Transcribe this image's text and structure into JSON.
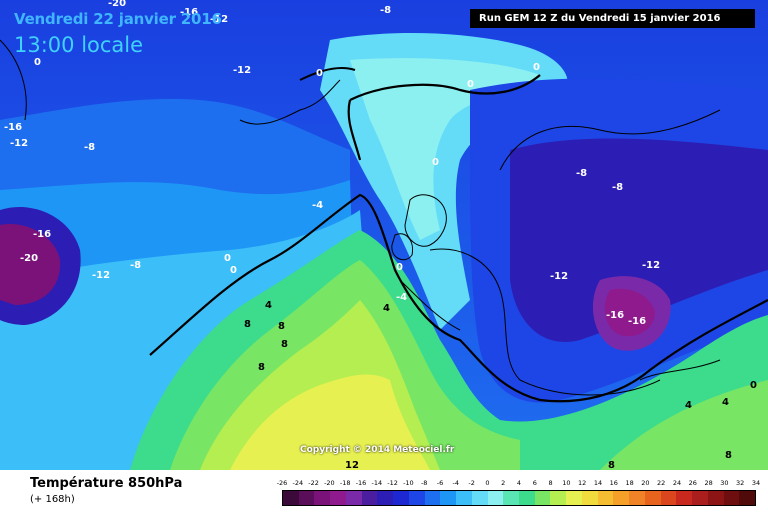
{
  "header": {
    "date": "Vendredi 22 janvier 2016",
    "time": "13:00 locale",
    "run": "Run GEM 12 Z du Vendredi 15 janvier 2016"
  },
  "map": {
    "copyright": "Copyright © 2014 Meteociel.fr",
    "labels": [
      "-20",
      "-16",
      "-12",
      "-8",
      "-12",
      "0",
      "0",
      "-16",
      "-12",
      "-8",
      "0",
      "0",
      "-8",
      "-8",
      "-4",
      "0",
      "-16",
      "-20",
      "-12",
      "-8",
      "0",
      "0",
      "-12",
      "-12",
      "0",
      "4",
      "4",
      "8",
      "8",
      "8",
      "-16",
      "-16",
      "8",
      "8",
      "12",
      "8",
      "4",
      "4",
      "0",
      "-4"
    ]
  },
  "legend": {
    "title": "Température 850hPa",
    "subtitle": "(+ 168h)",
    "scale": [
      "-26",
      "-24",
      "-22",
      "-20",
      "-18",
      "-16",
      "-14",
      "-12",
      "-10",
      "-8",
      "-6",
      "-4",
      "-2",
      "0",
      "2",
      "4",
      "6",
      "8",
      "10",
      "12",
      "14",
      "16",
      "18",
      "20",
      "22",
      "24",
      "26",
      "28",
      "30",
      "32",
      "34"
    ],
    "colors": [
      "#3b0a3b",
      "#5a0e5a",
      "#7a127a",
      "#8e1a8e",
      "#7a2aa8",
      "#4b1ea0",
      "#2c1eb4",
      "#1e28d2",
      "#1e46e6",
      "#1e6ef0",
      "#1e96f5",
      "#3cbef8",
      "#64dcf8",
      "#8cf0f0",
      "#5ae6b4",
      "#3cdc8c",
      "#78e664",
      "#b4ee50",
      "#e6f050",
      "#f0dc3c",
      "#f5be32",
      "#f5a028",
      "#f08228",
      "#e6641e",
      "#dc461e",
      "#c8281e",
      "#aa1e1e",
      "#8c1414",
      "#6e0e0e",
      "#500a0a"
    ]
  }
}
